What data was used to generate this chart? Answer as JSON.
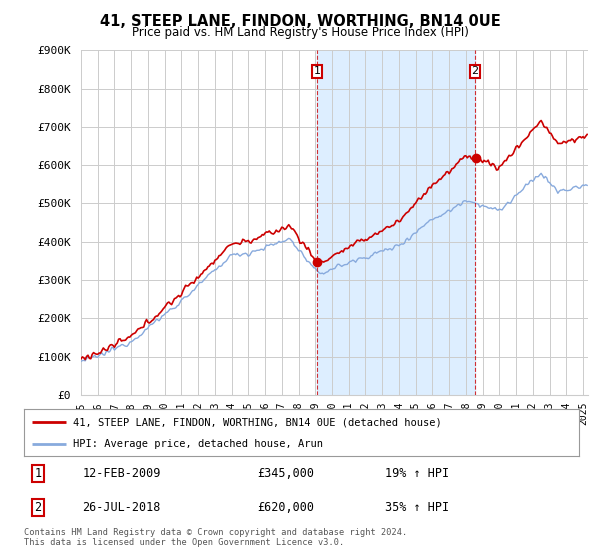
{
  "title": "41, STEEP LANE, FINDON, WORTHING, BN14 0UE",
  "subtitle": "Price paid vs. HM Land Registry's House Price Index (HPI)",
  "ylim": [
    0,
    900000
  ],
  "yticks": [
    0,
    100000,
    200000,
    300000,
    400000,
    500000,
    600000,
    700000,
    800000,
    900000
  ],
  "ytick_labels": [
    "£0",
    "£100K",
    "£200K",
    "£300K",
    "£400K",
    "£500K",
    "£600K",
    "£700K",
    "£800K",
    "£900K"
  ],
  "price_paid_color": "#cc0000",
  "hpi_color": "#88aadd",
  "shade_color": "#ddeeff",
  "sale1_year": 2009.12,
  "sale1_price": 345000,
  "sale2_year": 2018.55,
  "sale2_price": 620000,
  "legend_line1": "41, STEEP LANE, FINDON, WORTHING, BN14 0UE (detached house)",
  "legend_line2": "HPI: Average price, detached house, Arun",
  "note1_date": "12-FEB-2009",
  "note1_price": "£345,000",
  "note1_hpi": "19% ↑ HPI",
  "note2_date": "26-JUL-2018",
  "note2_price": "£620,000",
  "note2_hpi": "35% ↑ HPI",
  "footer": "Contains HM Land Registry data © Crown copyright and database right 2024.\nThis data is licensed under the Open Government Licence v3.0.",
  "background_color": "#ffffff",
  "grid_color": "#cccccc",
  "xmin": 1995,
  "xmax": 2025.3
}
